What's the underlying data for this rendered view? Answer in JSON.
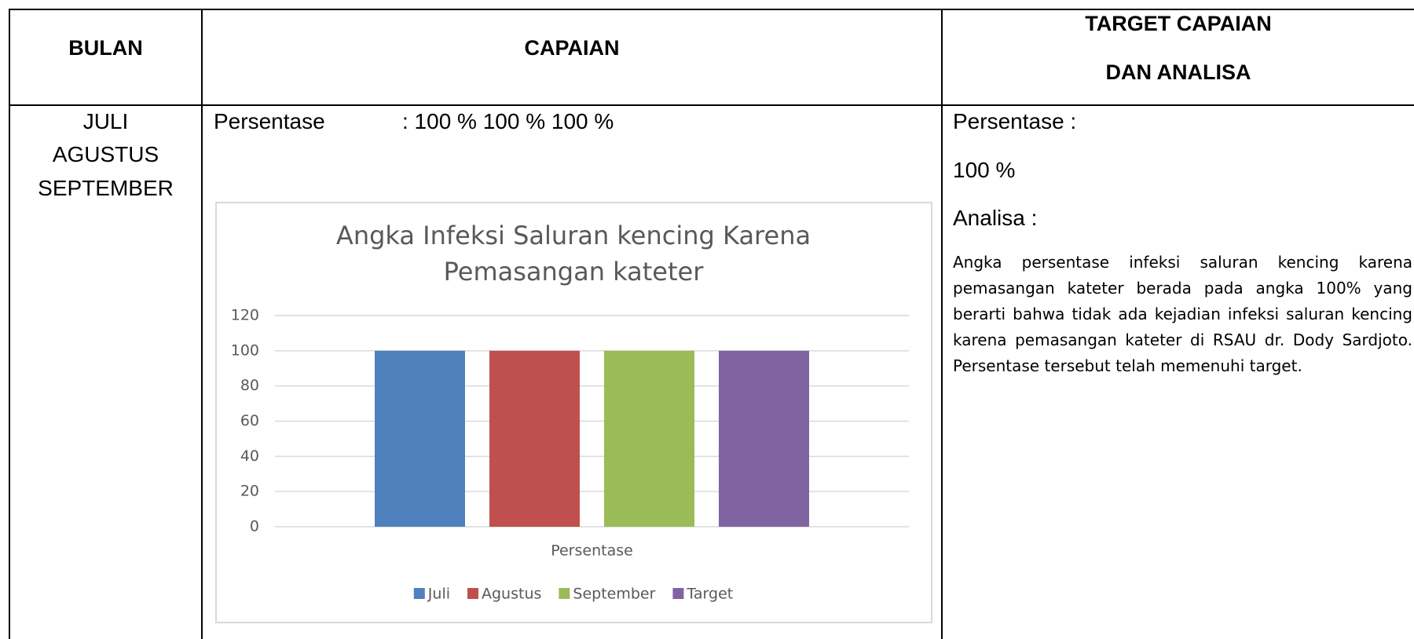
{
  "table": {
    "header": [
      "BULAN",
      "CAPAIAN",
      [
        "TARGET CAPAIAN",
        "DAN ANALISA"
      ]
    ],
    "months": [
      "JULI",
      "AGUSTUS",
      "SEPTEMBER"
    ],
    "capaian": {
      "label": "Persentase",
      "value": ": 100 % 100 % 100 %"
    },
    "target": {
      "label": "Persentase :",
      "value": "100 %",
      "analysis_label": "Analisa :",
      "analysis": "Angka persentase infeksi saluran kencing karena pemasangan kateter berada pada angka 100% yang berarti bahwa tidak ada kejadian infeksi saluran kencing karena pemasangan kateter di RSAU dr. Dody Sardjoto. Persentase tersebut telah memenuhi target."
    }
  },
  "chart_data": {
    "type": "bar",
    "title": [
      "Angka Infeksi Saluran kencing Karena",
      "Pemasangan kateter"
    ],
    "categories": [
      "Persentase"
    ],
    "series": [
      {
        "name": "Juli",
        "color": "#4f81bd",
        "values": [
          100
        ]
      },
      {
        "name": "Agustus",
        "color": "#c0504d",
        "values": [
          100
        ]
      },
      {
        "name": "September",
        "color": "#9bbb59",
        "values": [
          100
        ]
      },
      {
        "name": "Target",
        "color": "#8064a2",
        "values": [
          100
        ]
      }
    ],
    "ylim": [
      0,
      120
    ],
    "yticks": [
      0,
      20,
      40,
      60,
      80,
      100,
      120
    ],
    "grid": true
  }
}
